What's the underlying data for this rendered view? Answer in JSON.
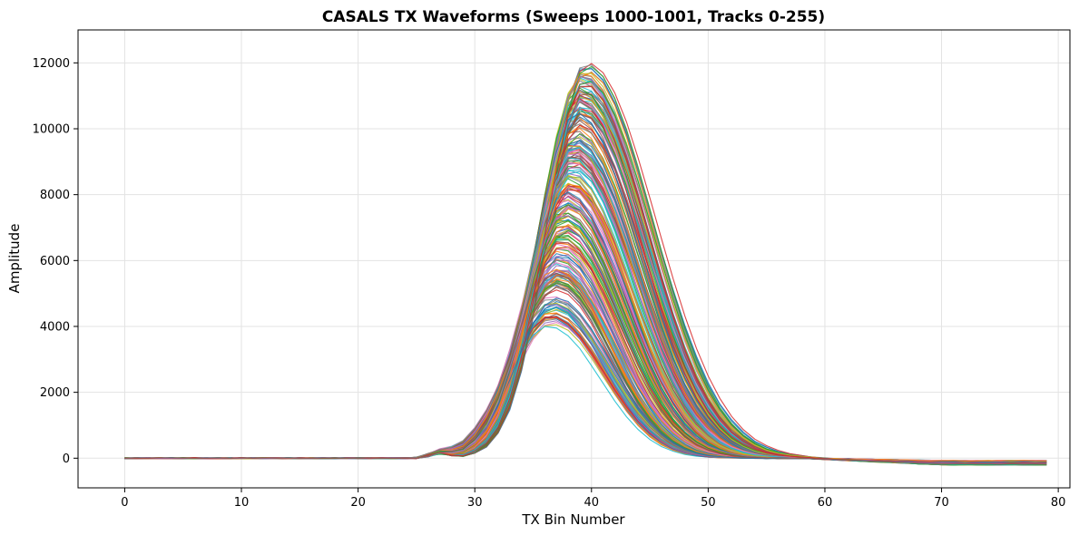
{
  "chart_data": {
    "type": "line",
    "title": "CASALS TX Waveforms (Sweeps 1000-1001, Tracks 0-255)",
    "xlabel": "TX Bin Number",
    "ylabel": "Amplitude",
    "xlim": [
      -4,
      81
    ],
    "ylim": [
      -900,
      13000
    ],
    "xticks": [
      0,
      10,
      20,
      30,
      40,
      50,
      60,
      70,
      80
    ],
    "yticks": [
      0,
      2000,
      4000,
      6000,
      8000,
      10000,
      12000
    ],
    "grid": true,
    "legend": "none",
    "series_count": 256,
    "x": [
      0,
      1,
      2,
      3,
      4,
      5,
      6,
      7,
      8,
      9,
      10,
      11,
      12,
      13,
      14,
      15,
      16,
      17,
      18,
      19,
      20,
      21,
      22,
      23,
      24,
      25,
      26,
      27,
      28,
      29,
      30,
      31,
      32,
      33,
      34,
      35,
      36,
      37,
      38,
      39,
      40,
      41,
      42,
      43,
      44,
      45,
      46,
      47,
      48,
      49,
      50,
      51,
      52,
      53,
      54,
      55,
      56,
      57,
      58,
      59,
      60,
      61,
      62,
      63,
      64,
      65,
      66,
      67,
      68,
      69,
      70,
      71,
      72,
      73,
      74,
      75,
      76,
      77,
      78,
      79
    ],
    "envelope": {
      "lowest_peak": {
        "x": 36.5,
        "y": 4000
      },
      "highest_peak": {
        "x": 40,
        "y": 12350
      },
      "baseline": 0,
      "tail_min": -180
    },
    "colors": [
      "#1f77b4",
      "#ff7f0e",
      "#2ca02c",
      "#d62728",
      "#9467bd",
      "#8c564b",
      "#e377c2",
      "#7f7f7f",
      "#bcbd22",
      "#17becf"
    ]
  }
}
